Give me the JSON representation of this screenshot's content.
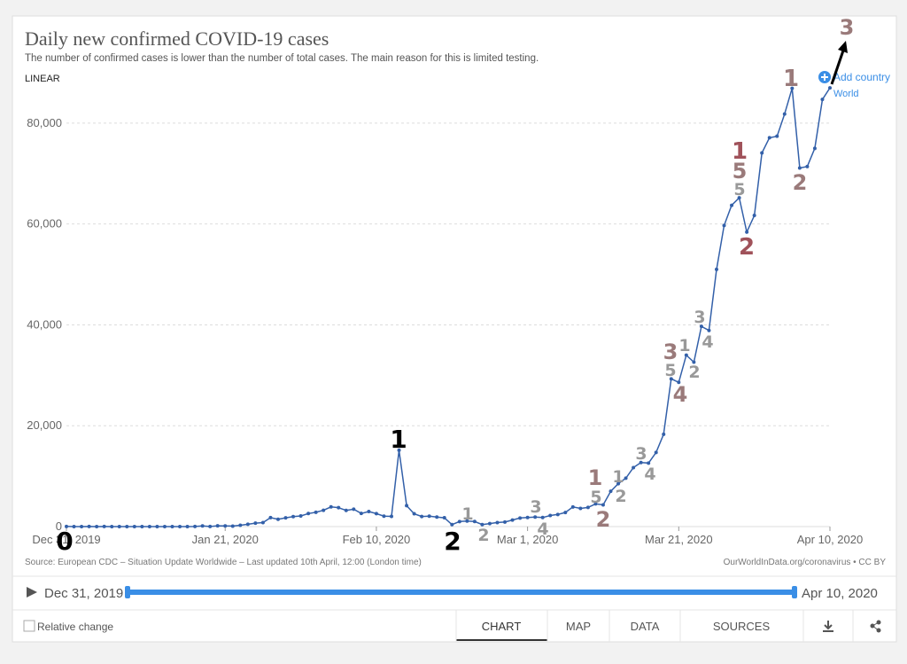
{
  "chart_data": {
    "type": "line",
    "title": "Daily new confirmed COVID-19 cases",
    "subtitle": "The number of confirmed cases is lower than the number of total cases. The main reason for this is limited testing.",
    "scale_label": "LINEAR",
    "add_country": "Add country",
    "source": "Source: European CDC – Situation Update Worldwide – Last updated 10th April, 12:00 (London time)",
    "credit": "OurWorldInData.org/coronavirus • CC BY",
    "x_start": "2019-12-31",
    "xlim": [
      "2019-12-31",
      "2020-04-10"
    ],
    "xticks": [
      {
        "value": "2019-12-31",
        "label": "Dec 31, 2019"
      },
      {
        "value": "2020-01-21",
        "label": "Jan 21, 2020"
      },
      {
        "value": "2020-02-10",
        "label": "Feb 10, 2020"
      },
      {
        "value": "2020-03-01",
        "label": "Mar 1, 2020"
      },
      {
        "value": "2020-03-21",
        "label": "Mar 21, 2020"
      },
      {
        "value": "2020-04-10",
        "label": "Apr 10, 2020"
      }
    ],
    "ylim": [
      0,
      90000
    ],
    "yticks": [
      0,
      {
        "value": 20000,
        "label": "20,000"
      },
      {
        "value": 40000,
        "label": "40,000"
      },
      {
        "value": 60000,
        "label": "60,000"
      },
      {
        "value": 80000,
        "label": "80,000"
      }
    ],
    "grid": true,
    "series": [
      {
        "name": "World",
        "color": "#3360a9",
        "values": [
          27,
          0,
          0,
          17,
          0,
          15,
          0,
          0,
          0,
          0,
          0,
          0,
          0,
          1,
          0,
          1,
          4,
          17,
          136,
          20,
          153,
          142,
          97,
          266,
          460,
          687,
          787,
          1775,
          1460,
          1740,
          1984,
          2101,
          2590,
          2827,
          3237,
          3907,
          3752,
          3218,
          3444,
          2607,
          2983,
          2562,
          2068,
          2015,
          15141,
          4156,
          2538,
          2007,
          2065,
          1888,
          1749,
          394,
          999,
          1100,
          1000,
          400,
          600,
          800,
          900,
          1300,
          1700,
          1800,
          1900,
          1800,
          2200,
          2400,
          2800,
          3900,
          3600,
          3800,
          4500,
          4300,
          7000,
          8500,
          9600,
          11700,
          12700,
          12600,
          14700,
          18300,
          29300,
          28600,
          34000,
          32600,
          39700,
          38900,
          51000,
          59700,
          63700,
          65200,
          58400,
          61700,
          74100,
          77100,
          77400,
          81800,
          86900,
          71100,
          71400,
          75000,
          84700,
          87000
        ]
      }
    ],
    "annotations": [
      "0",
      "1",
      "2",
      "1",
      "2",
      "3",
      "4",
      "1",
      "5",
      "2",
      "1",
      "2",
      "3",
      "4",
      "3",
      "5",
      "4",
      "1",
      "2",
      "3",
      "4",
      "1",
      "5",
      "5",
      "2",
      "1",
      "2",
      "3"
    ],
    "timeline": {
      "start": "Dec 31, 2019",
      "end": "Apr 10, 2020"
    },
    "relative_change": "Relative change",
    "tabs": [
      "CHART",
      "MAP",
      "DATA",
      "SOURCES"
    ]
  }
}
